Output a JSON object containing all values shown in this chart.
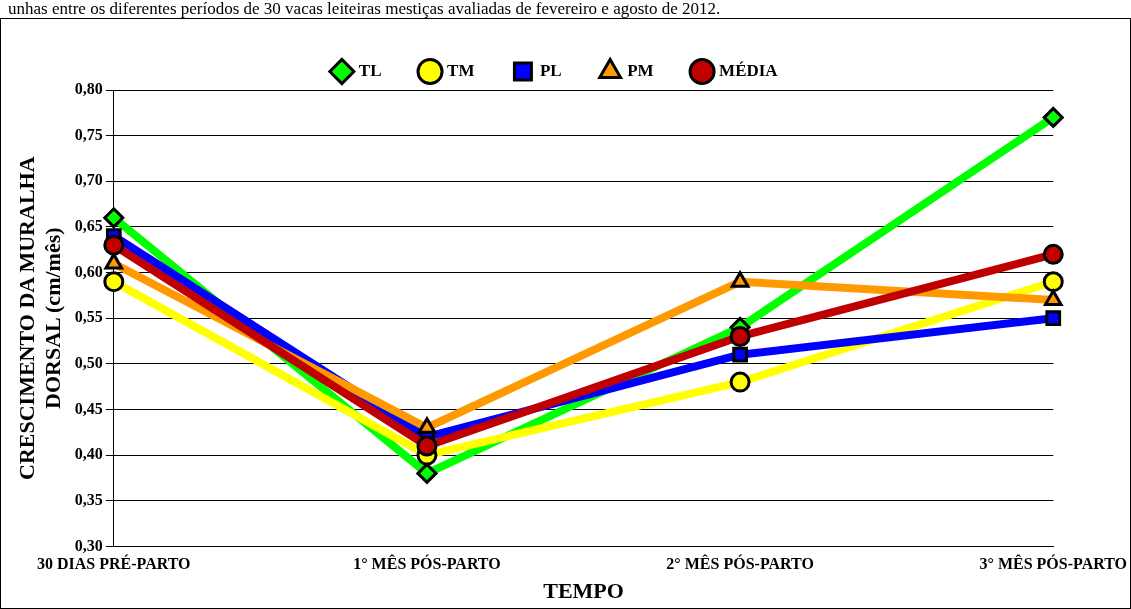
{
  "chart_data": {
    "type": "line",
    "xlabel": "TEMPO",
    "ylabel": "CRESCIMENTO DA MURALHA\nDORSAL (cm/mês)",
    "annotations": [
      "unhas entre os diferentes períodos de 30 vacas leiteiras mestiças avaliadas de fevereiro e agosto de 2012."
    ],
    "categories": [
      "30 DIAS PRÉ-PARTO",
      "1° MÊS PÓS-PARTO",
      "2° MÊS PÓS-PARTO",
      "3° MÊS PÓS-PARTO"
    ],
    "series": [
      {
        "name": "TL",
        "color": "#00ff00",
        "marker": "diamond",
        "values": [
          0.66,
          0.38,
          0.54,
          0.77
        ]
      },
      {
        "name": "TM",
        "color": "#ffff00",
        "marker": "circle",
        "values": [
          0.59,
          0.4,
          0.48,
          0.59
        ]
      },
      {
        "name": "PL",
        "color": "#0000ff",
        "marker": "square",
        "values": [
          0.64,
          0.42,
          0.51,
          0.55
        ]
      },
      {
        "name": "PM",
        "color": "#ff9900",
        "marker": "triangle",
        "values": [
          0.61,
          0.43,
          0.59,
          0.57
        ]
      },
      {
        "name": "MÉDIA",
        "color": "#c00000",
        "marker": "circle",
        "values": [
          0.63,
          0.41,
          0.53,
          0.62
        ]
      }
    ],
    "ylim": [
      0.3,
      0.8
    ],
    "yticks": [
      {
        "value": 0.3,
        "label": "0,30"
      },
      {
        "value": 0.35,
        "label": "0,35"
      },
      {
        "value": 0.4,
        "label": "0,40"
      },
      {
        "value": 0.45,
        "label": "0,45"
      },
      {
        "value": 0.5,
        "label": "0,50"
      },
      {
        "value": 0.55,
        "label": "0,55"
      },
      {
        "value": 0.6,
        "label": "0,60"
      },
      {
        "value": 0.65,
        "label": "0,65"
      },
      {
        "value": 0.7,
        "label": "0,70"
      },
      {
        "value": 0.75,
        "label": "0,75"
      },
      {
        "value": 0.8,
        "label": "0,80"
      }
    ],
    "grid": "y",
    "legend": "top",
    "line_style": "solid"
  }
}
